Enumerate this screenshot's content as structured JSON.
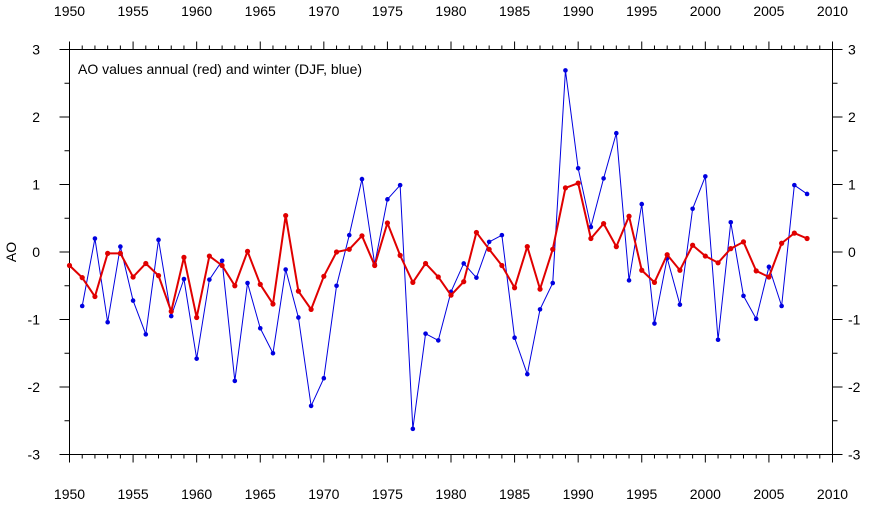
{
  "chart_data": {
    "type": "line",
    "title": "AO values annual (red) and winter (DJF, blue)",
    "xlabel": "",
    "ylabel": "AO",
    "xlim": [
      1950,
      2010
    ],
    "ylim": [
      -3,
      3
    ],
    "x_ticks": [
      "1950",
      "1955",
      "1960",
      "1965",
      "1970",
      "1975",
      "1980",
      "1985",
      "1990",
      "1995",
      "2000",
      "2005",
      "2010"
    ],
    "y_ticks": [
      "3",
      "2",
      "1",
      "0",
      "-1",
      "-2",
      "-3"
    ],
    "grid": false,
    "colors": {
      "annual": "#e00000",
      "winter": "#0000e0"
    },
    "series": [
      {
        "key": "winter",
        "x": [
          1951,
          1952,
          1953,
          1954,
          1955,
          1956,
          1957,
          1958,
          1959,
          1960,
          1961,
          1962,
          1963,
          1964,
          1965,
          1966,
          1967,
          1968,
          1969,
          1970,
          1971,
          1972,
          1973,
          1974,
          1975,
          1976,
          1977,
          1978,
          1979,
          1980,
          1981,
          1982,
          1983,
          1984,
          1985,
          1986,
          1987,
          1988,
          1989,
          1990,
          1991,
          1992,
          1993,
          1994,
          1995,
          1996,
          1997,
          1998,
          1999,
          2000,
          2001,
          2002,
          2003,
          2004,
          2005,
          2006,
          2007,
          2008
        ],
        "values": [
          -0.8,
          0.2,
          -1.04,
          0.08,
          -0.72,
          -1.22,
          0.18,
          -0.95,
          -0.4,
          -1.58,
          -0.41,
          -0.13,
          -1.91,
          -0.46,
          -1.13,
          -1.5,
          -0.26,
          -0.97,
          -2.28,
          -1.87,
          -0.5,
          0.25,
          1.08,
          -0.18,
          0.78,
          0.99,
          -2.62,
          -1.21,
          -1.31,
          -0.59,
          -0.17,
          -0.38,
          0.15,
          0.25,
          -1.27,
          -1.81,
          -0.85,
          -0.46,
          2.69,
          1.24,
          0.37,
          1.09,
          1.76,
          -0.42,
          0.71,
          -1.06,
          -0.09,
          -0.78,
          0.64,
          1.12,
          -1.3,
          0.44,
          -0.65,
          -0.99,
          -0.22,
          -0.8,
          0.99,
          0.86
        ]
      },
      {
        "key": "annual",
        "x": [
          1950,
          1951,
          1952,
          1953,
          1954,
          1955,
          1956,
          1957,
          1958,
          1959,
          1960,
          1961,
          1962,
          1963,
          1964,
          1965,
          1966,
          1967,
          1968,
          1969,
          1970,
          1971,
          1972,
          1973,
          1974,
          1975,
          1976,
          1977,
          1978,
          1979,
          1980,
          1981,
          1982,
          1983,
          1984,
          1985,
          1986,
          1987,
          1988,
          1989,
          1990,
          1991,
          1992,
          1993,
          1994,
          1995,
          1996,
          1997,
          1998,
          1999,
          2000,
          2001,
          2002,
          2003,
          2004,
          2005,
          2006,
          2007,
          2008
        ],
        "values": [
          -0.2,
          -0.38,
          -0.66,
          -0.02,
          -0.02,
          -0.37,
          -0.17,
          -0.35,
          -0.88,
          -0.08,
          -0.97,
          -0.06,
          -0.2,
          -0.5,
          0.01,
          -0.48,
          -0.77,
          0.54,
          -0.58,
          -0.85,
          -0.36,
          0.0,
          0.04,
          0.24,
          -0.2,
          0.43,
          -0.05,
          -0.45,
          -0.17,
          -0.37,
          -0.64,
          -0.44,
          0.29,
          0.04,
          -0.2,
          -0.53,
          0.08,
          -0.55,
          0.04,
          0.95,
          1.02,
          0.2,
          0.42,
          0.08,
          0.53,
          -0.27,
          -0.45,
          -0.04,
          -0.27,
          0.1,
          -0.06,
          -0.16,
          0.05,
          0.15,
          -0.28,
          -0.37,
          0.13,
          0.28,
          0.2
        ]
      }
    ]
  }
}
